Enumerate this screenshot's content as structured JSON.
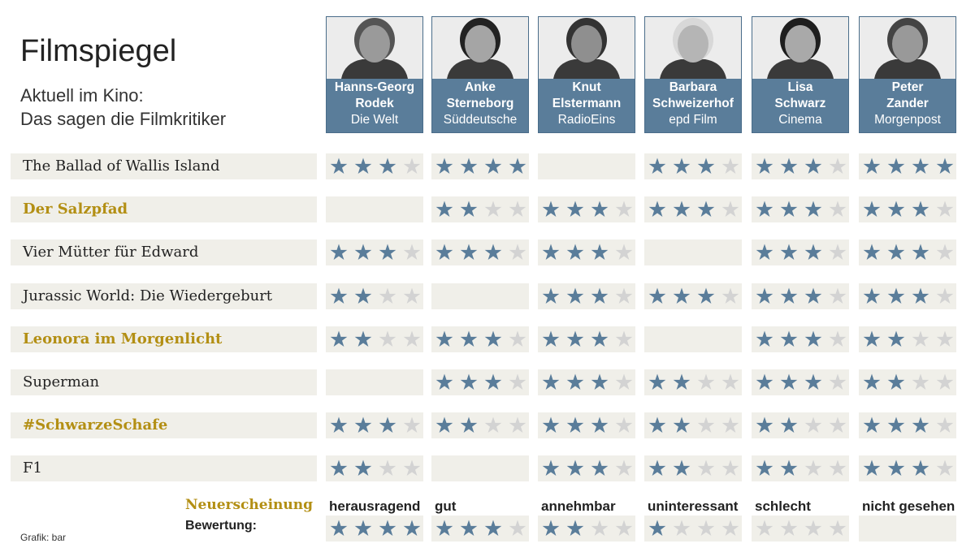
{
  "header": {
    "title": "Filmspiegel",
    "subtitle_line1": "Aktuell im Kino:",
    "subtitle_line2": "Das sagen die Filmkritiker"
  },
  "critics": [
    {
      "first": "Hanns-Georg",
      "last": "Rodek",
      "outlet": "Die Welt"
    },
    {
      "first": "Anke",
      "last": "Sterneborg",
      "outlet": "Süddeutsche"
    },
    {
      "first": "Knut",
      "last": "Elstermann",
      "outlet": "RadioEins"
    },
    {
      "first": "Barbara",
      "last": "Schweizerhof",
      "outlet": "epd Film"
    },
    {
      "first": "Lisa",
      "last": "Schwarz",
      "outlet": "Cinema"
    },
    {
      "first": "Peter",
      "last": "Zander",
      "outlet": "Morgenpost"
    }
  ],
  "films": [
    {
      "title": "The Ballad of Wallis Island",
      "new": false,
      "ratings": [
        3,
        4,
        null,
        3,
        3,
        4
      ]
    },
    {
      "title": "Der Salzpfad",
      "new": true,
      "ratings": [
        null,
        2,
        3,
        3,
        3,
        3
      ]
    },
    {
      "title": "Vier Mütter für Edward",
      "new": false,
      "ratings": [
        3,
        3,
        3,
        null,
        3,
        3
      ]
    },
    {
      "title": "Jurassic World: Die Wiedergeburt",
      "new": false,
      "ratings": [
        2,
        null,
        3,
        3,
        3,
        3
      ]
    },
    {
      "title": "Leonora im Morgenlicht",
      "new": true,
      "ratings": [
        2,
        3,
        3,
        null,
        3,
        2
      ]
    },
    {
      "title": "Superman",
      "new": false,
      "ratings": [
        null,
        3,
        3,
        2,
        3,
        2
      ]
    },
    {
      "title": "#SchwarzeSchafe",
      "new": true,
      "ratings": [
        3,
        2,
        3,
        2,
        2,
        3
      ]
    },
    {
      "title": "F1",
      "new": false,
      "ratings": [
        2,
        null,
        3,
        2,
        2,
        3
      ]
    }
  ],
  "legend": {
    "new_label": "Neuerscheinung",
    "rating_label": "Bewertung:",
    "items": [
      {
        "label": "herausragend",
        "stars": 4
      },
      {
        "label": "gut",
        "stars": 3
      },
      {
        "label": "annehmbar",
        "stars": 2
      },
      {
        "label": "uninteressant",
        "stars": 1
      },
      {
        "label": "schlecht",
        "stars": 0
      },
      {
        "label": "nicht gesehen",
        "stars": null
      }
    ]
  },
  "source": "Grafik: bar",
  "colors": {
    "star_filled": "#5a7d9a",
    "star_empty": "#d3d3d3",
    "new_film": "#b38f14",
    "cell_bg": "#f0efe9",
    "critic_bg": "#5a7d9a"
  }
}
